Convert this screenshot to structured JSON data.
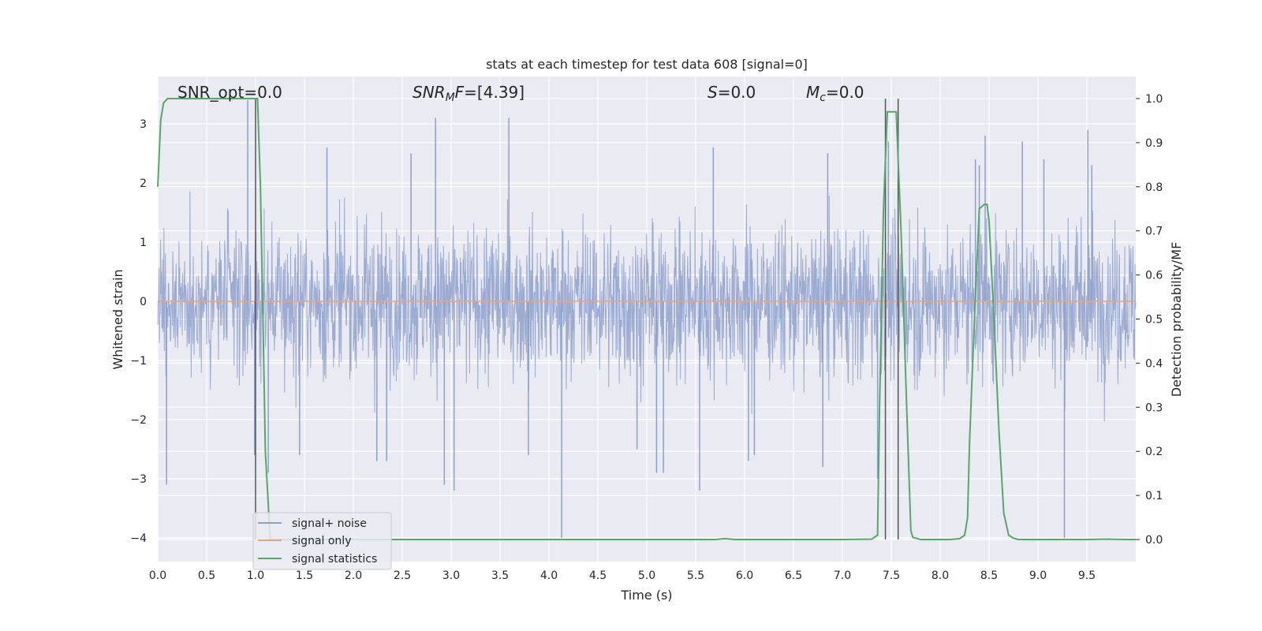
{
  "chart_data": {
    "type": "line",
    "title": "stats at each timestep for test data 608 [signal=0]",
    "xlabel": "Time (s)",
    "ylabel": "Whitened strain",
    "ylabel_right": "Detection probability/MF",
    "xlim": [
      0.0,
      10.0
    ],
    "ylim": [
      -4.4,
      3.8
    ],
    "ylim_right": [
      -0.05,
      1.05
    ],
    "grid": true,
    "legend_position": "lower-left",
    "x_ticks": [
      "0.0",
      "0.5",
      "1.0",
      "1.5",
      "2.0",
      "2.5",
      "3.0",
      "3.5",
      "4.0",
      "4.5",
      "5.0",
      "5.5",
      "6.0",
      "6.5",
      "7.0",
      "7.5",
      "8.0",
      "8.5",
      "9.0",
      "9.5"
    ],
    "y_ticks": [
      "3",
      "2",
      "1",
      "0",
      "−1",
      "−2",
      "−3",
      "−4"
    ],
    "y_ticks_right": [
      "1.0",
      "0.9",
      "0.8",
      "0.7",
      "0.6",
      "0.5",
      "0.4",
      "0.3",
      "0.2",
      "0.1",
      "0.0"
    ],
    "annotations": {
      "snr_opt": "SNR_opt=0.0",
      "snr_mf": "=[4.39]",
      "snr_mf_symbol": "SNR",
      "snr_mf_sub": "M",
      "snr_mf_tail": "F",
      "s": "=0.0",
      "s_symbol": "S",
      "mc": "=0.0",
      "mc_symbol": "M",
      "mc_sub": "c"
    },
    "markers_x": [
      1.0,
      7.44,
      7.57
    ],
    "series": [
      {
        "name": "signal+ noise",
        "color": "#8da0cb",
        "kind": "noise",
        "envelope_typical": 1.2,
        "peaks": [
          [
            0.09,
            -3.1
          ],
          [
            0.92,
            3.4
          ],
          [
            0.99,
            -2.6
          ],
          [
            1.13,
            -2.9
          ],
          [
            1.45,
            -2.6
          ],
          [
            1.73,
            2.6
          ],
          [
            2.24,
            -2.7
          ],
          [
            2.34,
            -2.7
          ],
          [
            2.59,
            2.5
          ],
          [
            2.84,
            3.1
          ],
          [
            2.93,
            -3.1
          ],
          [
            3.03,
            -3.2
          ],
          [
            3.59,
            3.1
          ],
          [
            3.79,
            -2.6
          ],
          [
            4.13,
            -4.0
          ],
          [
            4.9,
            -2.5
          ],
          [
            5.1,
            -2.9
          ],
          [
            5.17,
            -2.9
          ],
          [
            5.54,
            -3.2
          ],
          [
            5.68,
            2.6
          ],
          [
            6.04,
            -2.7
          ],
          [
            6.1,
            -2.6
          ],
          [
            6.8,
            -2.8
          ],
          [
            6.85,
            2.5
          ],
          [
            7.36,
            -3.0
          ],
          [
            7.47,
            2.7
          ],
          [
            8.36,
            2.4
          ],
          [
            8.4,
            2.3
          ],
          [
            8.46,
            2.8
          ],
          [
            8.84,
            2.7
          ],
          [
            9.06,
            2.4
          ],
          [
            9.27,
            -4.0
          ],
          [
            9.51,
            2.9
          ],
          [
            9.55,
            2.3
          ]
        ]
      },
      {
        "name": "signal only",
        "color": "#e5a582",
        "kind": "flat",
        "value": 0.0
      },
      {
        "name": "signal statistics",
        "color": "#55a868",
        "axis": "right",
        "x": [
          0.0,
          0.03,
          0.06,
          0.1,
          0.2,
          0.4,
          0.6,
          0.8,
          0.9,
          0.98,
          1.02,
          1.05,
          1.08,
          1.1,
          1.15,
          1.2,
          1.5,
          2.0,
          3.0,
          4.0,
          5.0,
          5.5,
          5.7,
          5.8,
          5.9,
          6.0,
          6.5,
          7.0,
          7.3,
          7.36,
          7.38,
          7.42,
          7.46,
          7.5,
          7.55,
          7.6,
          7.65,
          7.7,
          7.72,
          7.8,
          8.0,
          8.1,
          8.2,
          8.25,
          8.28,
          8.3,
          8.35,
          8.4,
          8.45,
          8.48,
          8.5,
          8.55,
          8.6,
          8.65,
          8.7,
          8.75,
          8.8,
          8.9,
          9.0,
          9.5,
          9.7,
          9.9,
          10.0
        ],
        "y": [
          0.8,
          0.95,
          0.99,
          1.0,
          1.0,
          1.0,
          1.0,
          1.0,
          1.0,
          1.0,
          1.0,
          0.8,
          0.45,
          0.2,
          0.0,
          0.0,
          0.0,
          0.0,
          0.0,
          0.0,
          0.0,
          0.0,
          0.0,
          0.002,
          0.0,
          0.0,
          0.0,
          0.0,
          0.001,
          0.01,
          0.3,
          0.75,
          0.97,
          0.97,
          0.97,
          0.7,
          0.35,
          0.02,
          0.005,
          0.0,
          0.0,
          0.0,
          0.002,
          0.01,
          0.05,
          0.22,
          0.5,
          0.75,
          0.76,
          0.76,
          0.72,
          0.5,
          0.25,
          0.06,
          0.01,
          0.003,
          0.0,
          0.0,
          0.0,
          0.0,
          0.001,
          0.0,
          0.0
        ]
      }
    ]
  }
}
